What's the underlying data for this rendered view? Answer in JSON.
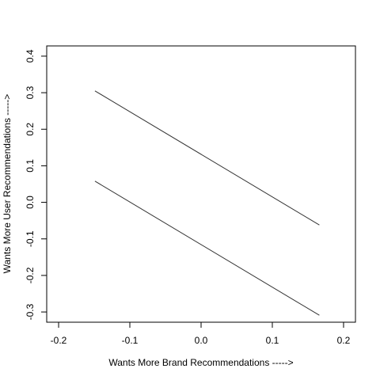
{
  "chart_data": {
    "type": "line",
    "x_label": "Wants More Brand Recommendations ----->",
    "y_label": "Wants More User Recommendations ----->",
    "x": [
      -0.149,
      0.166
    ],
    "series": [
      {
        "color": "#333333",
        "values": [
          0.305,
          -0.062
        ]
      },
      {
        "color": "#333333",
        "values": [
          0.058,
          -0.309
        ]
      }
    ],
    "xlim": [
      -0.2167,
      0.2167
    ],
    "ylim": [
      -0.328,
      0.428
    ],
    "xticks": [
      -0.2,
      -0.1,
      {
        "value": 0,
        "label": "0.0"
      },
      0.1,
      0.2
    ],
    "yticks": [
      -0.3,
      -0.2,
      -0.1,
      {
        "value": 0,
        "label": "0.0"
      },
      0.1,
      0.2,
      0.3,
      0.4
    ]
  }
}
